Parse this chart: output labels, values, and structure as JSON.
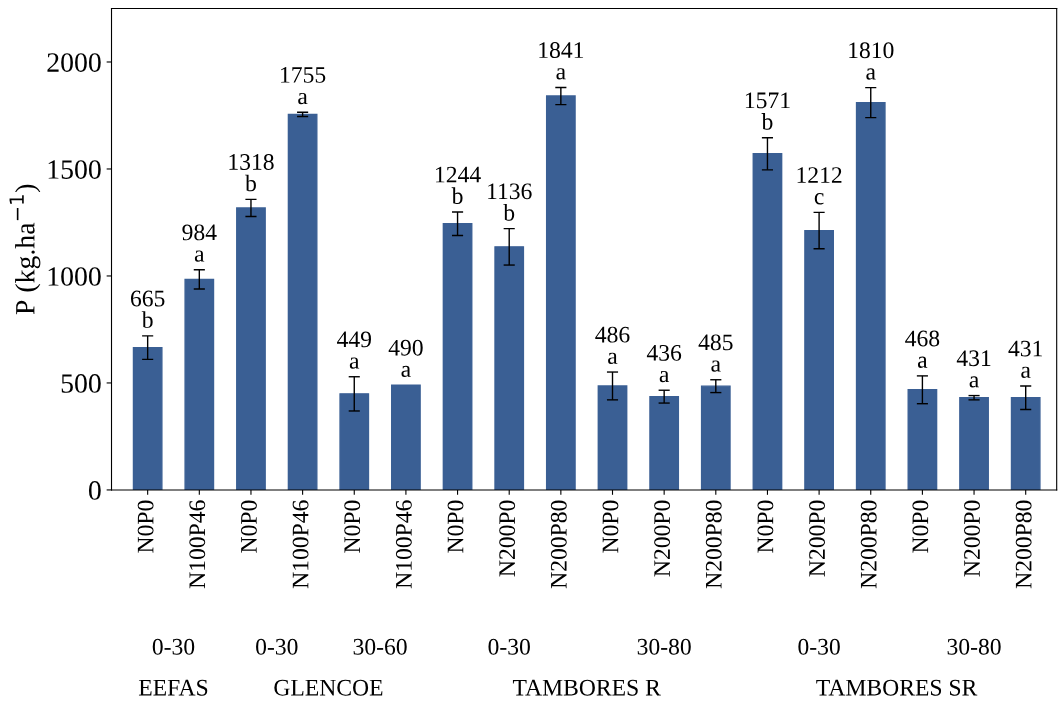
{
  "chart_data": {
    "type": "bar",
    "ylabel": "P (kg.ha$^{−1}$)",
    "categories": [
      "N0P0",
      "N100P46",
      "N0P0",
      "N100P46",
      "N0P0",
      "N100P46",
      "N0P0",
      "N200P0",
      "N200P80",
      "N0P0",
      "N200P0",
      "N200P80",
      "N0P0",
      "N200P0",
      "N200P80",
      "N0P0",
      "N200P0",
      "N200P80"
    ],
    "values": [
      665,
      984,
      1318,
      1755,
      449,
      490,
      1244,
      1136,
      1841,
      486,
      436,
      485,
      1571,
      1212,
      1810,
      468,
      431,
      431
    ],
    "errors": [
      55,
      45,
      40,
      10,
      80,
      null,
      55,
      85,
      40,
      65,
      30,
      30,
      75,
      85,
      70,
      65,
      10,
      55
    ],
    "value_labels": [
      "665\nb",
      "984\na",
      "1318\nb",
      "1755\na",
      "449\na",
      "490\na",
      "1244\nb",
      "1136\nb",
      "1841\na",
      "486\na",
      "436\na",
      "485\na",
      "1571\nb",
      "1212\nc",
      "1810\na",
      "468\na",
      "431\na",
      "431\na"
    ],
    "color": "#3a5f94",
    "ylim": [
      0,
      2250
    ],
    "yticks": [
      0,
      500,
      1000,
      1500,
      2000
    ],
    "grid": false,
    "legend": false,
    "annotations": [
      "0-30",
      "0-30",
      "30-60",
      "0-30",
      "30-80",
      "0-30",
      "30-80",
      "EEFAS",
      "GLENCOE",
      "TAMBORES R",
      "TAMBORES SR"
    ]
  }
}
